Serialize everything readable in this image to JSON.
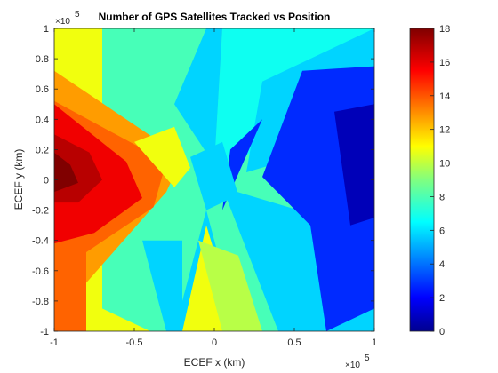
{
  "chart_data": {
    "type": "heatmap",
    "title": "Number of GPS Satellites Tracked vs Position",
    "xlabel": "ECEF x (km)",
    "ylabel": "ECEF y (km)",
    "x_multiplier": "×10",
    "x_multiplier_exp": "5",
    "y_multiplier": "×10",
    "y_multiplier_exp": "5",
    "xlim": [
      -1,
      1
    ],
    "ylim": [
      -1,
      1
    ],
    "x_ticks": [
      -1,
      -0.5,
      0,
      0.5,
      1
    ],
    "x_tick_labels": [
      "-1",
      "-0.5",
      "0",
      "0.5",
      "1"
    ],
    "y_ticks": [
      1,
      0.8,
      0.6,
      0.4,
      0.2,
      0,
      -0.2,
      -0.4,
      -0.6,
      -0.8,
      -1
    ],
    "y_tick_labels": [
      "1",
      "0.8",
      "0.6",
      "0.4",
      "0.2",
      "0",
      "-0.2",
      "-0.4",
      "-0.6",
      "-0.8",
      "-1"
    ],
    "colorbar": {
      "colormap": "jet",
      "range": [
        0,
        18
      ],
      "ticks": [
        0,
        2,
        4,
        6,
        8,
        10,
        12,
        14,
        16,
        18
      ],
      "tick_labels": [
        "0",
        "2",
        "4",
        "6",
        "8",
        "10",
        "12",
        "14",
        "16",
        "18"
      ]
    },
    "grid": false,
    "regions": [
      {
        "value": 8,
        "polygon": [
          [
            -1,
            1
          ],
          [
            1,
            1
          ],
          [
            1,
            -1
          ],
          [
            -1,
            -1
          ]
        ]
      },
      {
        "value": 7,
        "polygon": [
          [
            0.05,
            1
          ],
          [
            1,
            1
          ],
          [
            1,
            0.55
          ],
          [
            0.3,
            0.2
          ],
          [
            0,
            0.1
          ]
        ]
      },
      {
        "value": 6,
        "polygon": [
          [
            0.3,
            0.65
          ],
          [
            1,
            1
          ],
          [
            1,
            0.3
          ],
          [
            0.2,
            0.05
          ]
        ]
      },
      {
        "value": 6,
        "polygon": [
          [
            0.05,
            -0.05
          ],
          [
            1,
            -0.35
          ],
          [
            1,
            -1
          ],
          [
            0.4,
            -1
          ]
        ]
      },
      {
        "value": 3,
        "polygon": [
          [
            0.55,
            0.72
          ],
          [
            1,
            0.75
          ],
          [
            1,
            -0.85
          ],
          [
            0.7,
            -1
          ],
          [
            0.6,
            -0.3
          ],
          [
            0.3,
            0.02
          ]
        ]
      },
      {
        "value": 1,
        "polygon": [
          [
            0.75,
            0.45
          ],
          [
            1,
            0.5
          ],
          [
            1,
            -0.25
          ],
          [
            0.85,
            -0.3
          ]
        ]
      },
      {
        "value": 3,
        "polygon": [
          [
            0.1,
            0.2
          ],
          [
            0.3,
            0.4
          ],
          [
            0.05,
            -0.2
          ]
        ]
      },
      {
        "value": 6,
        "polygon": [
          [
            -0.25,
            0.5
          ],
          [
            -0.05,
            1
          ],
          [
            0.05,
            1
          ],
          [
            0,
            0.1
          ]
        ]
      },
      {
        "value": 6,
        "polygon": [
          [
            -0.25,
            -1
          ],
          [
            -0.05,
            -0.2
          ],
          [
            0.15,
            -1
          ]
        ]
      },
      {
        "value": 6,
        "polygon": [
          [
            -0.15,
            0.15
          ],
          [
            0.05,
            0.25
          ],
          [
            0.15,
            -0.1
          ],
          [
            -0.05,
            -0.2
          ]
        ]
      },
      {
        "value": 11,
        "polygon": [
          [
            -1,
            1
          ],
          [
            -0.7,
            1
          ],
          [
            -0.7,
            -0.85
          ],
          [
            -0.4,
            -1
          ],
          [
            -1,
            -1
          ]
        ]
      },
      {
        "value": 11,
        "polygon": [
          [
            -0.2,
            -1
          ],
          [
            0.15,
            -1
          ],
          [
            -0.05,
            -0.3
          ]
        ]
      },
      {
        "value": 13,
        "polygon": [
          [
            -1,
            0.72
          ],
          [
            -0.2,
            0.15
          ],
          [
            -0.3,
            -0.08
          ],
          [
            -1,
            -0.92
          ]
        ]
      },
      {
        "value": 14,
        "polygon": [
          [
            -1,
            0.52
          ],
          [
            -0.3,
            0.12
          ],
          [
            -0.38,
            -0.18
          ],
          [
            -1,
            -0.62
          ]
        ]
      },
      {
        "value": 14,
        "polygon": [
          [
            -1,
            -0.2
          ],
          [
            -0.8,
            -0.45
          ],
          [
            -0.8,
            -1
          ],
          [
            -1,
            -1
          ]
        ]
      },
      {
        "value": 16,
        "polygon": [
          [
            -1,
            0.5
          ],
          [
            -0.55,
            0.12
          ],
          [
            -0.45,
            -0.12
          ],
          [
            -0.75,
            -0.35
          ],
          [
            -1,
            -0.42
          ]
        ]
      },
      {
        "value": 17,
        "polygon": [
          [
            -1,
            0.3
          ],
          [
            -0.78,
            0.18
          ],
          [
            -0.7,
            0.0
          ],
          [
            -0.85,
            -0.15
          ],
          [
            -1,
            -0.15
          ]
        ]
      },
      {
        "value": 18,
        "polygon": [
          [
            -1,
            0.18
          ],
          [
            -0.9,
            0.1
          ],
          [
            -0.85,
            -0.02
          ],
          [
            -1,
            -0.08
          ]
        ]
      },
      {
        "value": 11,
        "polygon": [
          [
            -0.5,
            0.25
          ],
          [
            -0.25,
            0.35
          ],
          [
            -0.15,
            0.08
          ],
          [
            -0.25,
            -0.05
          ]
        ]
      },
      {
        "value": 10,
        "polygon": [
          [
            -0.1,
            -0.4
          ],
          [
            0.15,
            -0.5
          ],
          [
            0.3,
            -1
          ],
          [
            0.05,
            -1
          ]
        ]
      },
      {
        "value": 6,
        "polygon": [
          [
            -0.45,
            -0.4
          ],
          [
            -0.3,
            -1
          ],
          [
            -0.2,
            -1
          ],
          [
            -0.2,
            -0.4
          ]
        ]
      }
    ]
  }
}
